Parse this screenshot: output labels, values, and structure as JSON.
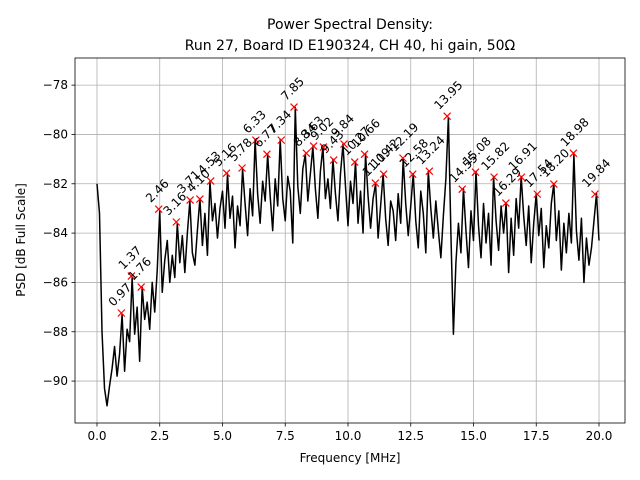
{
  "chart_data": {
    "type": "line",
    "title": [
      "Power Spectral Density:",
      "Run 27, Board ID E190324, CH 40, hi gain, 50Ω"
    ],
    "xlabel": "Frequency [MHz]",
    "ylabel": "PSD [dB Full Scale]",
    "xlim": [
      -0.876,
      21.036
    ],
    "ylim": [
      -91.7,
      -76.9
    ],
    "xticks": [
      {
        "value": 0,
        "label": "0.0"
      },
      2.5,
      {
        "value": 5,
        "label": "5.0"
      },
      7.5,
      {
        "value": 10,
        "label": "10.0"
      },
      12.5,
      {
        "value": 15,
        "label": "15.0"
      },
      17.5,
      {
        "value": 20,
        "label": "20.0"
      }
    ],
    "yticks": [
      {
        "value": -90,
        "label": "−90"
      },
      {
        "value": -88,
        "label": "−88"
      },
      {
        "value": -86,
        "label": "−86"
      },
      {
        "value": -84,
        "label": "−84"
      },
      {
        "value": -82,
        "label": "−82"
      },
      {
        "value": -80,
        "label": "−80"
      },
      {
        "value": -78,
        "label": "−78"
      }
    ],
    "grid": true,
    "x": [
      0,
      0.1,
      0.2,
      0.3,
      0.4,
      0.5,
      0.6,
      0.7,
      0.8,
      0.9,
      1,
      1.1,
      1.2,
      1.3,
      1.4,
      1.5,
      1.6,
      1.7,
      1.8,
      1.9,
      2,
      2.1,
      2.2,
      2.3,
      2.4,
      2.5,
      2.6,
      2.7,
      2.8,
      2.9,
      3,
      3.1,
      3.2,
      3.3,
      3.4,
      3.5,
      3.6,
      3.7,
      3.8,
      3.9,
      4,
      4.1,
      4.2,
      4.3,
      4.4,
      4.5,
      4.6,
      4.7,
      4.8,
      4.9,
      5,
      5.1,
      5.2,
      5.3,
      5.4,
      5.5,
      5.6,
      5.7,
      5.8,
      5.9,
      6,
      6.1,
      6.2,
      6.3,
      6.4,
      6.5,
      6.6,
      6.7,
      6.8,
      6.9,
      7,
      7.1,
      7.2,
      7.3,
      7.4,
      7.5,
      7.6,
      7.7,
      7.8,
      7.9,
      8,
      8.1,
      8.2,
      8.3,
      8.4,
      8.5,
      8.6,
      8.7,
      8.8,
      8.9,
      9,
      9.1,
      9.2,
      9.3,
      9.4,
      9.5,
      9.6,
      9.7,
      9.8,
      9.9,
      10,
      10.1,
      10.2,
      10.3,
      10.4,
      10.5,
      10.6,
      10.7,
      10.8,
      10.9,
      11,
      11.1,
      11.2,
      11.3,
      11.4,
      11.5,
      11.6,
      11.7,
      11.8,
      11.9,
      12,
      12.1,
      12.2,
      12.3,
      12.4,
      12.5,
      12.6,
      12.7,
      12.8,
      12.9,
      13,
      13.1,
      13.2,
      13.3,
      13.4,
      13.5,
      13.6,
      13.7,
      13.8,
      13.9,
      14,
      14.1,
      14.2,
      14.3,
      14.4,
      14.5,
      14.6,
      14.7,
      14.8,
      14.9,
      15,
      15.1,
      15.2,
      15.3,
      15.4,
      15.5,
      15.6,
      15.7,
      15.8,
      15.9,
      16,
      16.1,
      16.2,
      16.3,
      16.4,
      16.5,
      16.6,
      16.7,
      16.8,
      16.9,
      17,
      17.1,
      17.2,
      17.3,
      17.4,
      17.5,
      17.6,
      17.7,
      17.8,
      17.9,
      18,
      18.1,
      18.2,
      18.3,
      18.4,
      18.5,
      18.6,
      18.7,
      18.8,
      18.9,
      19,
      19.1,
      19.2,
      19.3,
      19.4,
      19.5,
      19.6,
      19.7,
      19.8,
      19.9,
      20
    ],
    "series": [
      {
        "color": "#000000",
        "values": [
          -82.0,
          -83.2,
          -88.0,
          -90.3,
          -91.0,
          -90.2,
          -89.5,
          -88.6,
          -89.8,
          -88.9,
          -87.3,
          -89.6,
          -87.9,
          -88.4,
          -85.8,
          -88.1,
          -87.0,
          -89.2,
          -86.2,
          -87.5,
          -86.8,
          -87.9,
          -86.0,
          -87.2,
          -85.5,
          -83.1,
          -86.4,
          -85.1,
          -84.3,
          -86.0,
          -84.9,
          -85.8,
          -83.6,
          -85.2,
          -84.1,
          -85.6,
          -84.0,
          -82.7,
          -84.8,
          -85.3,
          -83.9,
          -82.6,
          -84.5,
          -83.2,
          -84.9,
          -81.9,
          -83.5,
          -82.8,
          -84.2,
          -83.0,
          -82.3,
          -83.8,
          -81.6,
          -83.4,
          -82.5,
          -84.6,
          -82.9,
          -83.7,
          -81.4,
          -82.8,
          -84.1,
          -82.2,
          -83.3,
          -80.2,
          -82.4,
          -83.6,
          -81.9,
          -82.7,
          -80.8,
          -82.5,
          -83.9,
          -81.8,
          -82.9,
          -80.2,
          -82.6,
          -83.5,
          -81.7,
          -82.3,
          -84.4,
          -78.9,
          -82.1,
          -83.2,
          -81.4,
          -80.8,
          -82.7,
          -81.6,
          -80.5,
          -82.2,
          -83.4,
          -81.5,
          -80.5,
          -82.6,
          -81.8,
          -83.0,
          -81.0,
          -82.4,
          -83.5,
          -81.6,
          -80.4,
          -82.1,
          -83.7,
          -81.9,
          -82.8,
          -81.1,
          -83.6,
          -82.3,
          -84.0,
          -80.8,
          -82.5,
          -83.8,
          -82.6,
          -82.0,
          -84.2,
          -82.9,
          -81.6,
          -83.4,
          -84.5,
          -82.7,
          -83.1,
          -84.3,
          -82.4,
          -83.6,
          -81.0,
          -82.8,
          -84.1,
          -82.9,
          -81.6,
          -83.5,
          -84.6,
          -82.3,
          -83.2,
          -84.8,
          -81.5,
          -83.0,
          -84.2,
          -82.7,
          -83.9,
          -85.0,
          -83.3,
          -81.8,
          -79.3,
          -84.0,
          -88.1,
          -85.2,
          -83.6,
          -84.8,
          -82.2,
          -83.9,
          -85.4,
          -83.1,
          -84.3,
          -81.5,
          -83.7,
          -85.0,
          -82.8,
          -84.4,
          -83.2,
          -85.3,
          -81.7,
          -83.5,
          -84.7,
          -82.9,
          -84.0,
          -82.8,
          -85.6,
          -83.4,
          -84.9,
          -82.6,
          -83.8,
          -81.7,
          -83.3,
          -84.5,
          -82.9,
          -85.2,
          -83.6,
          -82.4,
          -84.1,
          -83.0,
          -85.4,
          -83.7,
          -84.6,
          -82.8,
          -82.0,
          -84.3,
          -83.1,
          -85.5,
          -83.6,
          -84.8,
          -83.2,
          -84.4,
          -80.8,
          -83.9,
          -85.1,
          -83.4,
          -86.0,
          -84.2,
          -85.3,
          -84.6,
          -83.5,
          -82.4,
          -84.3
        ]
      }
    ],
    "peaks": {
      "color": "#ff0000",
      "x": [
        0.97,
        1.37,
        1.76,
        2.46,
        3.16,
        3.71,
        4.1,
        4.53,
        5.16,
        5.78,
        6.33,
        6.77,
        7.34,
        7.85,
        8.34,
        8.63,
        9.02,
        9.43,
        9.84,
        10.27,
        10.66,
        11.09,
        11.42,
        12.19,
        12.58,
        13.24,
        13.95,
        14.55,
        15.08,
        15.82,
        16.29,
        16.91,
        17.54,
        18.2,
        18.98,
        19.84
      ],
      "values": [
        -87.24,
        -85.74,
        -86.19,
        -83.03,
        -83.55,
        -82.66,
        -82.62,
        -81.89,
        -81.57,
        -81.36,
        -80.23,
        -80.8,
        -80.23,
        -78.89,
        -80.76,
        -80.47,
        -80.51,
        -81.04,
        -80.39,
        -81.12,
        -80.8,
        -81.97,
        -81.61,
        -80.96,
        -81.61,
        -81.49,
        -79.26,
        -82.22,
        -81.53,
        -81.73,
        -82.78,
        -81.73,
        -82.42,
        -82.01,
        -80.76,
        -82.42
      ],
      "labels": [
        "0.97",
        "1.37",
        "1.76",
        "2.46",
        "3.16",
        "3.71",
        "4.10",
        "4.53",
        "5.16",
        "5.78",
        "6.33",
        "6.77",
        "7.34",
        "7.85",
        "8.34",
        "8.63",
        "9.02",
        "9.43",
        "9.84",
        "10.27",
        "10.66",
        "11.09",
        "11.42",
        "12.19",
        "12.58",
        "13.24",
        "13.95",
        "14.55",
        "15.08",
        "15.82",
        "16.29",
        "16.91",
        "17.54",
        "18.20",
        "18.98",
        "19.84"
      ]
    }
  }
}
